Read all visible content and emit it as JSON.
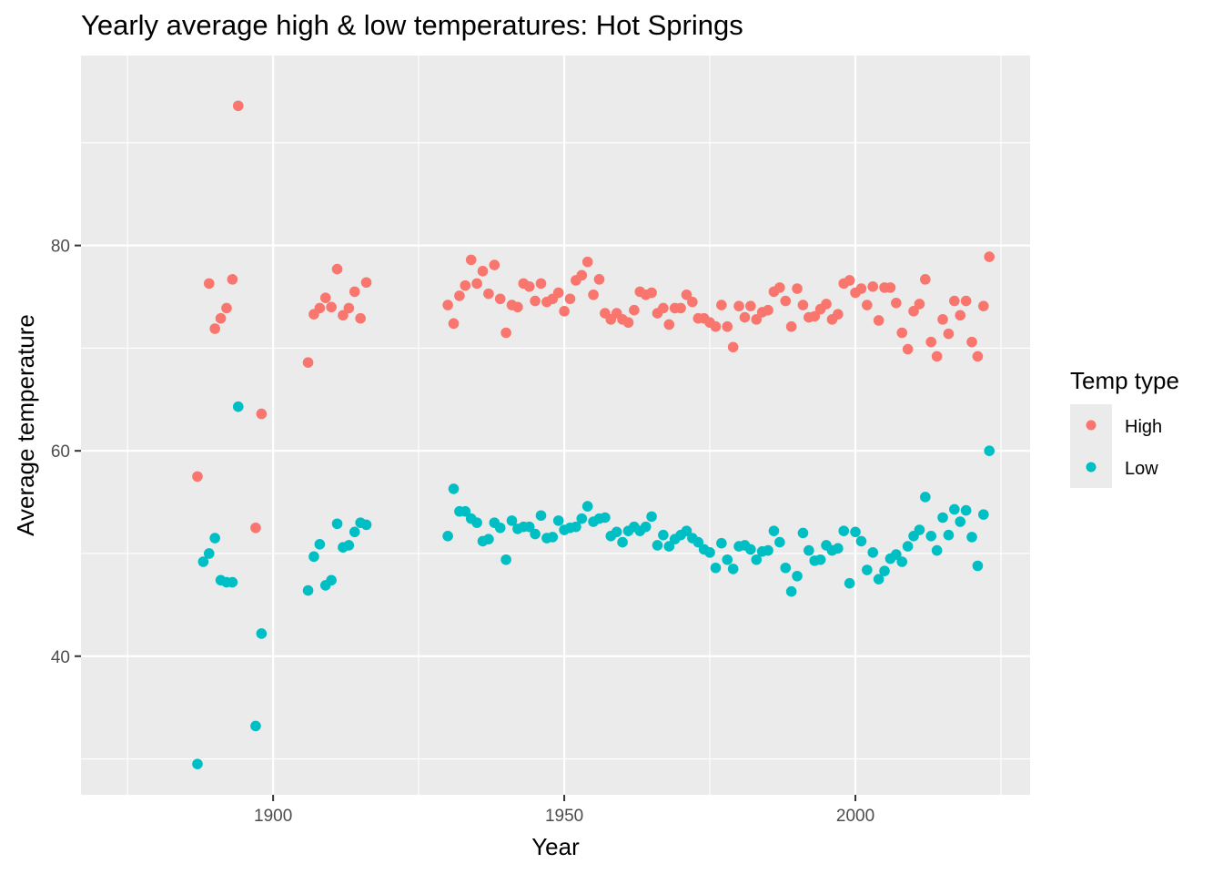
{
  "chart_data": {
    "type": "scatter",
    "title": "Yearly average high & low temperatures: Hot Springs",
    "xlabel": "Year",
    "ylabel": "Average temperature",
    "xlim": [
      1867,
      2030
    ],
    "ylim": [
      26.5,
      98.5
    ],
    "x_ticks": [
      1900,
      1950,
      2000
    ],
    "y_ticks": [
      40,
      60,
      80
    ],
    "x_minor_ticks": [
      1875,
      1925,
      1975,
      2025
    ],
    "y_minor_ticks": [
      30,
      50,
      70,
      90
    ],
    "grid": true,
    "legend": {
      "title": "Temp type",
      "placement": "right"
    },
    "series": [
      {
        "name": "High",
        "color": "#F8766D",
        "points": [
          [
            1887,
            57.5
          ],
          [
            1889,
            76.3
          ],
          [
            1890,
            71.9
          ],
          [
            1891,
            72.9
          ],
          [
            1892,
            73.9
          ],
          [
            1893,
            76.7
          ],
          [
            1894,
            93.6
          ],
          [
            1897,
            52.5
          ],
          [
            1898,
            63.6
          ],
          [
            1906,
            68.6
          ],
          [
            1907,
            73.3
          ],
          [
            1908,
            73.9
          ],
          [
            1909,
            74.9
          ],
          [
            1910,
            74.0
          ],
          [
            1911,
            77.7
          ],
          [
            1912,
            73.2
          ],
          [
            1913,
            73.9
          ],
          [
            1914,
            75.5
          ],
          [
            1915,
            72.9
          ],
          [
            1916,
            76.4
          ],
          [
            1930,
            74.2
          ],
          [
            1931,
            72.4
          ],
          [
            1932,
            75.1
          ],
          [
            1933,
            76.1
          ],
          [
            1934,
            78.6
          ],
          [
            1935,
            76.3
          ],
          [
            1936,
            77.5
          ],
          [
            1937,
            75.3
          ],
          [
            1938,
            78.1
          ],
          [
            1939,
            74.8
          ],
          [
            1940,
            71.5
          ],
          [
            1941,
            74.2
          ],
          [
            1942,
            74.0
          ],
          [
            1943,
            76.3
          ],
          [
            1944,
            76.0
          ],
          [
            1945,
            74.6
          ],
          [
            1946,
            76.3
          ],
          [
            1947,
            74.5
          ],
          [
            1948,
            74.8
          ],
          [
            1949,
            75.4
          ],
          [
            1950,
            73.6
          ],
          [
            1951,
            74.8
          ],
          [
            1952,
            76.6
          ],
          [
            1953,
            77.1
          ],
          [
            1954,
            78.4
          ],
          [
            1955,
            75.2
          ],
          [
            1956,
            76.7
          ],
          [
            1957,
            73.4
          ],
          [
            1958,
            72.8
          ],
          [
            1959,
            73.4
          ],
          [
            1960,
            72.8
          ],
          [
            1961,
            72.5
          ],
          [
            1962,
            73.7
          ],
          [
            1963,
            75.5
          ],
          [
            1964,
            75.2
          ],
          [
            1965,
            75.4
          ],
          [
            1966,
            73.4
          ],
          [
            1967,
            73.9
          ],
          [
            1968,
            72.3
          ],
          [
            1969,
            73.9
          ],
          [
            1970,
            73.9
          ],
          [
            1971,
            75.2
          ],
          [
            1972,
            74.5
          ],
          [
            1973,
            72.9
          ],
          [
            1974,
            72.9
          ],
          [
            1975,
            72.5
          ],
          [
            1976,
            72.1
          ],
          [
            1977,
            74.2
          ],
          [
            1978,
            72.1
          ],
          [
            1979,
            70.1
          ],
          [
            1980,
            74.1
          ],
          [
            1981,
            73.0
          ],
          [
            1982,
            74.1
          ],
          [
            1983,
            72.8
          ],
          [
            1984,
            73.5
          ],
          [
            1985,
            73.7
          ],
          [
            1986,
            75.5
          ],
          [
            1987,
            75.9
          ],
          [
            1988,
            74.6
          ],
          [
            1989,
            72.1
          ],
          [
            1990,
            75.8
          ],
          [
            1991,
            74.2
          ],
          [
            1992,
            73.0
          ],
          [
            1993,
            73.1
          ],
          [
            1994,
            73.8
          ],
          [
            1995,
            74.3
          ],
          [
            1996,
            72.8
          ],
          [
            1997,
            73.3
          ],
          [
            1998,
            76.3
          ],
          [
            1999,
            76.6
          ],
          [
            2000,
            75.4
          ],
          [
            2001,
            75.8
          ],
          [
            2002,
            74.2
          ],
          [
            2003,
            76.0
          ],
          [
            2004,
            72.7
          ],
          [
            2005,
            75.9
          ],
          [
            2006,
            75.9
          ],
          [
            2007,
            74.4
          ],
          [
            2008,
            71.5
          ],
          [
            2009,
            69.9
          ],
          [
            2010,
            73.6
          ],
          [
            2011,
            74.3
          ],
          [
            2012,
            76.7
          ],
          [
            2013,
            70.6
          ],
          [
            2014,
            69.2
          ],
          [
            2015,
            72.8
          ],
          [
            2016,
            71.4
          ],
          [
            2017,
            74.6
          ],
          [
            2018,
            73.2
          ],
          [
            2019,
            74.6
          ],
          [
            2020,
            70.6
          ],
          [
            2021,
            69.2
          ],
          [
            2022,
            74.1
          ],
          [
            2023,
            78.9
          ]
        ]
      },
      {
        "name": "Low",
        "color": "#00BFC4",
        "points": [
          [
            1887,
            29.5
          ],
          [
            1888,
            49.2
          ],
          [
            1889,
            50.0
          ],
          [
            1890,
            51.5
          ],
          [
            1891,
            47.4
          ],
          [
            1892,
            47.2
          ],
          [
            1893,
            47.2
          ],
          [
            1894,
            64.3
          ],
          [
            1897,
            33.2
          ],
          [
            1898,
            42.2
          ],
          [
            1906,
            46.4
          ],
          [
            1907,
            49.7
          ],
          [
            1908,
            50.9
          ],
          [
            1909,
            46.9
          ],
          [
            1910,
            47.4
          ],
          [
            1911,
            52.9
          ],
          [
            1912,
            50.6
          ],
          [
            1913,
            50.8
          ],
          [
            1914,
            52.1
          ],
          [
            1915,
            53.0
          ],
          [
            1916,
            52.8
          ],
          [
            1930,
            51.7
          ],
          [
            1931,
            56.3
          ],
          [
            1932,
            54.1
          ],
          [
            1933,
            54.1
          ],
          [
            1934,
            53.4
          ],
          [
            1935,
            53.0
          ],
          [
            1936,
            51.2
          ],
          [
            1937,
            51.4
          ],
          [
            1938,
            53.0
          ],
          [
            1939,
            52.5
          ],
          [
            1940,
            49.4
          ],
          [
            1941,
            53.2
          ],
          [
            1942,
            52.4
          ],
          [
            1943,
            52.6
          ],
          [
            1944,
            52.6
          ],
          [
            1945,
            51.9
          ],
          [
            1946,
            53.7
          ],
          [
            1947,
            51.5
          ],
          [
            1948,
            51.6
          ],
          [
            1949,
            53.2
          ],
          [
            1950,
            52.3
          ],
          [
            1951,
            52.5
          ],
          [
            1952,
            52.6
          ],
          [
            1953,
            53.4
          ],
          [
            1954,
            54.6
          ],
          [
            1955,
            53.1
          ],
          [
            1956,
            53.4
          ],
          [
            1957,
            53.5
          ],
          [
            1958,
            51.7
          ],
          [
            1959,
            52.1
          ],
          [
            1960,
            51.1
          ],
          [
            1961,
            52.2
          ],
          [
            1962,
            52.6
          ],
          [
            1963,
            52.2
          ],
          [
            1964,
            52.6
          ],
          [
            1965,
            53.6
          ],
          [
            1966,
            50.8
          ],
          [
            1967,
            51.8
          ],
          [
            1968,
            50.7
          ],
          [
            1969,
            51.4
          ],
          [
            1970,
            51.8
          ],
          [
            1971,
            52.2
          ],
          [
            1972,
            51.5
          ],
          [
            1973,
            51.1
          ],
          [
            1974,
            50.4
          ],
          [
            1975,
            50.1
          ],
          [
            1976,
            48.6
          ],
          [
            1977,
            51.0
          ],
          [
            1978,
            49.4
          ],
          [
            1979,
            48.5
          ],
          [
            1980,
            50.7
          ],
          [
            1981,
            50.8
          ],
          [
            1982,
            50.4
          ],
          [
            1983,
            49.4
          ],
          [
            1984,
            50.2
          ],
          [
            1985,
            50.3
          ],
          [
            1986,
            52.2
          ],
          [
            1987,
            51.1
          ],
          [
            1988,
            48.6
          ],
          [
            1989,
            46.3
          ],
          [
            1990,
            47.8
          ],
          [
            1991,
            52.0
          ],
          [
            1992,
            50.3
          ],
          [
            1993,
            49.3
          ],
          [
            1994,
            49.4
          ],
          [
            1995,
            50.8
          ],
          [
            1996,
            50.3
          ],
          [
            1997,
            50.5
          ],
          [
            1998,
            52.2
          ],
          [
            1999,
            47.1
          ],
          [
            2000,
            52.1
          ],
          [
            2001,
            51.2
          ],
          [
            2002,
            48.4
          ],
          [
            2003,
            50.1
          ],
          [
            2004,
            47.5
          ],
          [
            2005,
            48.3
          ],
          [
            2006,
            49.5
          ],
          [
            2007,
            49.9
          ],
          [
            2008,
            49.2
          ],
          [
            2009,
            50.7
          ],
          [
            2010,
            51.7
          ],
          [
            2011,
            52.3
          ],
          [
            2012,
            55.5
          ],
          [
            2013,
            51.7
          ],
          [
            2014,
            50.3
          ],
          [
            2015,
            53.5
          ],
          [
            2016,
            51.8
          ],
          [
            2017,
            54.3
          ],
          [
            2018,
            53.1
          ],
          [
            2019,
            54.2
          ],
          [
            2020,
            51.6
          ],
          [
            2021,
            48.8
          ],
          [
            2022,
            53.8
          ],
          [
            2023,
            60.0
          ]
        ]
      }
    ]
  }
}
